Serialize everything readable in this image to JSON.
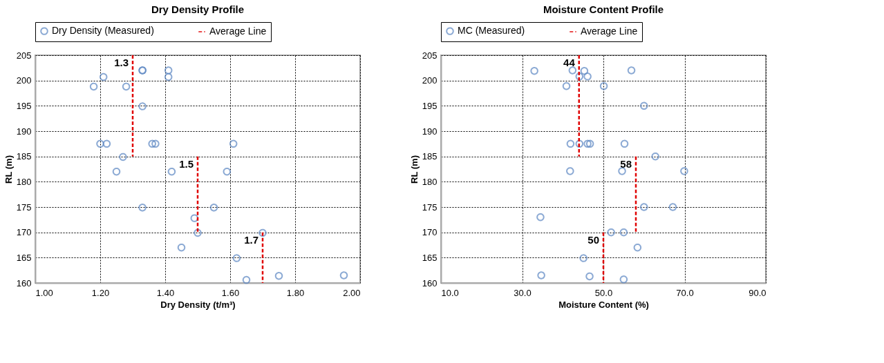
{
  "chart_data": [
    {
      "type": "scatter",
      "title": "Dry Density Profile",
      "xlabel": "Dry Density (t/m³)",
      "ylabel": "RL (m)",
      "xlim": [
        1.0,
        2.0
      ],
      "ylim": [
        160,
        205
      ],
      "xticks": [
        {
          "value": 1.0,
          "label": "1.00"
        },
        {
          "value": 1.2,
          "label": "1.20"
        },
        {
          "value": 1.4,
          "label": "1.40"
        },
        {
          "value": 1.6,
          "label": "1.60"
        },
        {
          "value": 1.8,
          "label": "1.80"
        },
        {
          "value": 2.0,
          "label": "2.00"
        }
      ],
      "yticks": [
        160,
        165,
        170,
        175,
        180,
        185,
        190,
        195,
        200,
        205
      ],
      "grid": true,
      "legend": "top",
      "series": [
        {
          "name": "Dry Density (Measured)",
          "color": "#5b86c2",
          "marker": "circle",
          "x": [
            1.33,
            1.33,
            1.41,
            1.41,
            1.21,
            1.18,
            1.28,
            1.33,
            1.2,
            1.22,
            1.36,
            1.37,
            1.61,
            1.27,
            1.25,
            1.42,
            1.59,
            1.33,
            1.55,
            1.49,
            1.5,
            1.7,
            1.45,
            1.62,
            1.65,
            1.75,
            1.95
          ],
          "values": [
            202,
            202,
            202,
            200.7,
            200.7,
            198.8,
            198.8,
            194.9,
            187.5,
            187.5,
            187.5,
            187.5,
            187.5,
            184.9,
            182,
            182,
            182,
            174.9,
            174.9,
            172.8,
            169.9,
            169.9,
            167,
            164.9,
            160.6,
            161.4,
            161.5
          ]
        },
        {
          "name": "Average Line",
          "color": "#e00000",
          "type": "line",
          "marker": "none",
          "line_style": "dashed",
          "x": [
            1.3,
            1.3
          ],
          "values": [
            205,
            185
          ]
        },
        {
          "color": "#e00000",
          "type": "line",
          "marker": "none",
          "line_style": "dashed",
          "x": [
            1.5,
            1.5
          ],
          "values": [
            185,
            170
          ]
        },
        {
          "color": "#e00000",
          "type": "line",
          "marker": "none",
          "line_style": "dashed",
          "x": [
            1.7,
            1.7
          ],
          "values": [
            170,
            160
          ]
        }
      ],
      "annotations": [
        {
          "text": "1.3",
          "x": 1.3,
          "y": 205
        },
        {
          "text": "1.5",
          "x": 1.5,
          "y": 185
        },
        {
          "text": "1.7",
          "x": 1.7,
          "y": 170
        }
      ]
    },
    {
      "type": "scatter",
      "title": "Moisture Content Profile",
      "xlabel": "Moisture Content (%)",
      "ylabel": "RL (m)",
      "xlim": [
        10,
        90
      ],
      "ylim": [
        160,
        205
      ],
      "xticks": [
        {
          "value": 10,
          "label": "10.0"
        },
        {
          "value": 30,
          "label": "30.0"
        },
        {
          "value": 50,
          "label": "50.0"
        },
        {
          "value": 70,
          "label": "70.0"
        },
        {
          "value": 90,
          "label": "90.0"
        }
      ],
      "yticks": [
        160,
        165,
        170,
        175,
        180,
        185,
        190,
        195,
        200,
        205
      ],
      "grid": true,
      "legend": "top",
      "series": [
        {
          "name": "MC (Measured)",
          "color": "#5b86c2",
          "marker": "circle",
          "x": [
            33.0,
            42.4,
            45.3,
            56.9,
            44.1,
            46.1,
            40.9,
            50.1,
            60.0,
            41.9,
            44.1,
            46.1,
            46.7,
            55.2,
            62.8,
            41.8,
            54.6,
            69.9,
            60.0,
            67.1,
            34.5,
            51.9,
            55.0,
            58.4,
            45.1,
            34.7,
            46.6,
            55.0
          ],
          "values": [
            201.9,
            202,
            201.9,
            202,
            200.8,
            200.8,
            198.9,
            198.9,
            195,
            187.5,
            187.5,
            187.5,
            187.5,
            187.5,
            185,
            182.1,
            182.1,
            182.1,
            175,
            175,
            173,
            170,
            170,
            167,
            164.9,
            161.5,
            161.3,
            160.7
          ]
        },
        {
          "name": "Average Line",
          "color": "#e00000",
          "type": "line",
          "marker": "none",
          "line_style": "dashed",
          "x": [
            44,
            44
          ],
          "values": [
            205,
            185
          ]
        },
        {
          "color": "#e00000",
          "type": "line",
          "marker": "none",
          "line_style": "dashed",
          "x": [
            58,
            58
          ],
          "values": [
            185,
            170
          ]
        },
        {
          "color": "#e00000",
          "type": "line",
          "marker": "none",
          "line_style": "dashed",
          "x": [
            50,
            50
          ],
          "values": [
            170,
            160
          ]
        }
      ],
      "annotations": [
        {
          "text": "44",
          "x": 44,
          "y": 205
        },
        {
          "text": "58",
          "x": 58,
          "y": 185
        },
        {
          "text": "50",
          "x": 50,
          "y": 170
        }
      ]
    }
  ]
}
